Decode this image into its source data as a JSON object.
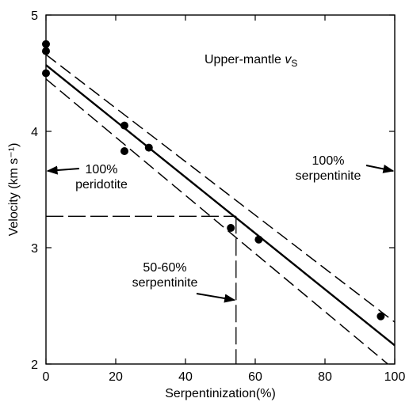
{
  "chart_data": {
    "type": "scatter",
    "title": "",
    "xlabel": "Serpentinization(%)",
    "ylabel": "Velocity (km s⁻¹)",
    "xlim": [
      0,
      100
    ],
    "ylim": [
      2,
      5
    ],
    "x_ticks": [
      0,
      20,
      40,
      60,
      80,
      100
    ],
    "y_ticks": [
      2,
      3,
      4,
      5
    ],
    "grid": false,
    "points": [
      {
        "x": 0,
        "y": 4.75
      },
      {
        "x": 0,
        "y": 4.69
      },
      {
        "x": 0,
        "y": 4.5
      },
      {
        "x": 22.5,
        "y": 4.05
      },
      {
        "x": 22.5,
        "y": 3.83
      },
      {
        "x": 29.5,
        "y": 3.86
      },
      {
        "x": 53,
        "y": 3.17
      },
      {
        "x": 61,
        "y": 3.07
      },
      {
        "x": 96,
        "y": 2.41
      }
    ],
    "fit_line": {
      "x": [
        0,
        100
      ],
      "y": [
        4.57,
        2.16
      ],
      "style": "solid"
    },
    "confidence_bounds": [
      {
        "x": [
          0,
          100
        ],
        "y": [
          4.66,
          2.36
        ],
        "style": "dashed"
      },
      {
        "x": [
          0,
          98
        ],
        "y": [
          4.45,
          2.0
        ],
        "style": "dashed"
      }
    ],
    "reference_lines": [
      {
        "from": [
          0,
          3.27
        ],
        "to": [
          54.5,
          3.27
        ],
        "style": "dashed"
      },
      {
        "from": [
          54.5,
          3.27
        ],
        "to": [
          54.5,
          2.0
        ],
        "style": "dashed"
      }
    ],
    "annotations": [
      {
        "id": "title",
        "parts": [
          "Upper-mantle ",
          "v",
          "S"
        ]
      },
      {
        "id": "peridotite",
        "lines": [
          "100%",
          "peridotite"
        ],
        "arrow_to": [
          0,
          3.66
        ]
      },
      {
        "id": "serpentinite-100",
        "lines": [
          "100%",
          "serpentinite"
        ],
        "arrow_to": [
          100,
          3.66
        ]
      },
      {
        "id": "serpentinite-50-60",
        "lines": [
          "50-60%",
          "serpentinite"
        ],
        "arrow_to": [
          54.5,
          2.55
        ]
      }
    ]
  }
}
